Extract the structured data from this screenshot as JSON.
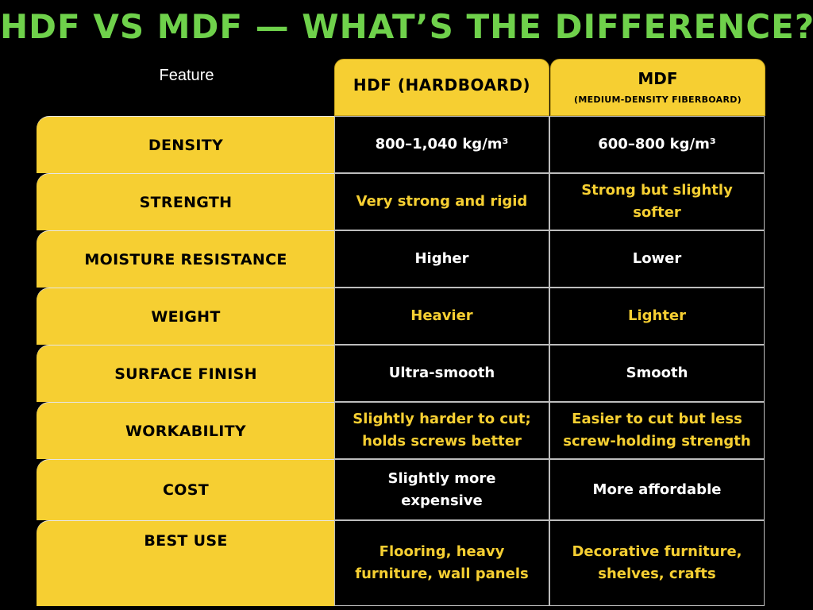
{
  "title": "HDF VS MDF — WHAT’S THE DIFFERENCE?",
  "header": {
    "feature": "Feature",
    "hdf": "HDF (HARDBOARD)",
    "mdf": "MDF",
    "mdf_sub": "(MEDIUM-DENSITY FIBERBOARD)"
  },
  "colors": {
    "title": "#6fd14b",
    "accent": "#f6cf32",
    "background": "#000000"
  },
  "rows": [
    {
      "feature": "DENSITY",
      "hdf": "800–1,040 kg/m³",
      "mdf": "600–800 kg/m³"
    },
    {
      "feature": "STRENGTH",
      "hdf": "Very strong and rigid",
      "mdf": "Strong but slightly softer"
    },
    {
      "feature": "MOISTURE RESISTANCE",
      "hdf": "Higher",
      "mdf": "Lower"
    },
    {
      "feature": "WEIGHT",
      "hdf": "Heavier",
      "mdf": "Lighter"
    },
    {
      "feature": "SURFACE FINISH",
      "hdf": "Ultra-smooth",
      "mdf": "Smooth"
    },
    {
      "feature": "WORKABILITY",
      "hdf": "Slightly harder to cut; holds screws better",
      "mdf": "Easier to cut but less screw-holding strength"
    },
    {
      "feature": "COST",
      "hdf": "Slightly more expensive",
      "mdf": "More affordable"
    },
    {
      "feature": "BEST USE",
      "hdf": "Flooring, heavy furniture, wall panels",
      "mdf": "Decorative furniture, shelves, crafts"
    }
  ]
}
